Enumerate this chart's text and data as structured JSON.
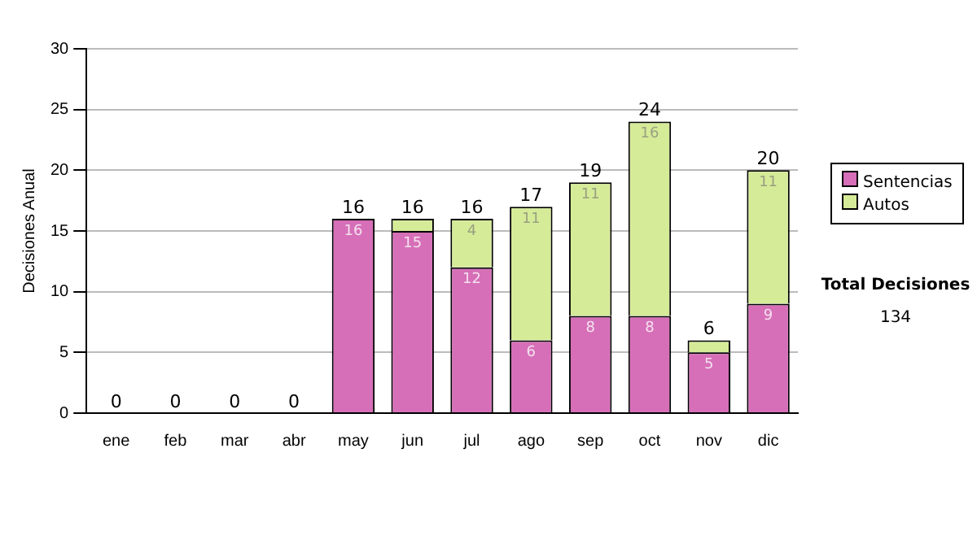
{
  "chart_data": {
    "type": "bar",
    "stacked": true,
    "ylabel": "Decisiones Anual",
    "categories": [
      "ene",
      "feb",
      "mar",
      "abr",
      "may",
      "jun",
      "jul",
      "ago",
      "sep",
      "oct",
      "nov",
      "dic"
    ],
    "series": [
      {
        "name": "Sentencias",
        "color": "#d66fb8",
        "values": [
          0,
          0,
          0,
          0,
          16,
          15,
          12,
          6,
          8,
          8,
          5,
          9
        ],
        "value_labels": [
          null,
          null,
          null,
          null,
          "16",
          "15",
          "12",
          "6",
          "8",
          "8",
          "5",
          "9"
        ]
      },
      {
        "name": "Autos",
        "color": "#d6eb98",
        "values": [
          0,
          0,
          0,
          0,
          0,
          1,
          4,
          11,
          11,
          16,
          1,
          11
        ],
        "value_labels": [
          null,
          null,
          null,
          null,
          null,
          null,
          "4",
          "11",
          "11",
          "16",
          null,
          "11"
        ]
      }
    ],
    "totals": [
      "0",
      "0",
      "0",
      "0",
      "16",
      "16",
      "16",
      "17",
      "19",
      "24",
      "6",
      "20"
    ],
    "ylim": [
      0,
      30
    ],
    "yticks": [
      0,
      5,
      10,
      15,
      20,
      25,
      30
    ],
    "grid": "y",
    "legend": "right",
    "annotations": [
      "Total Decisiones",
      "134"
    ]
  }
}
